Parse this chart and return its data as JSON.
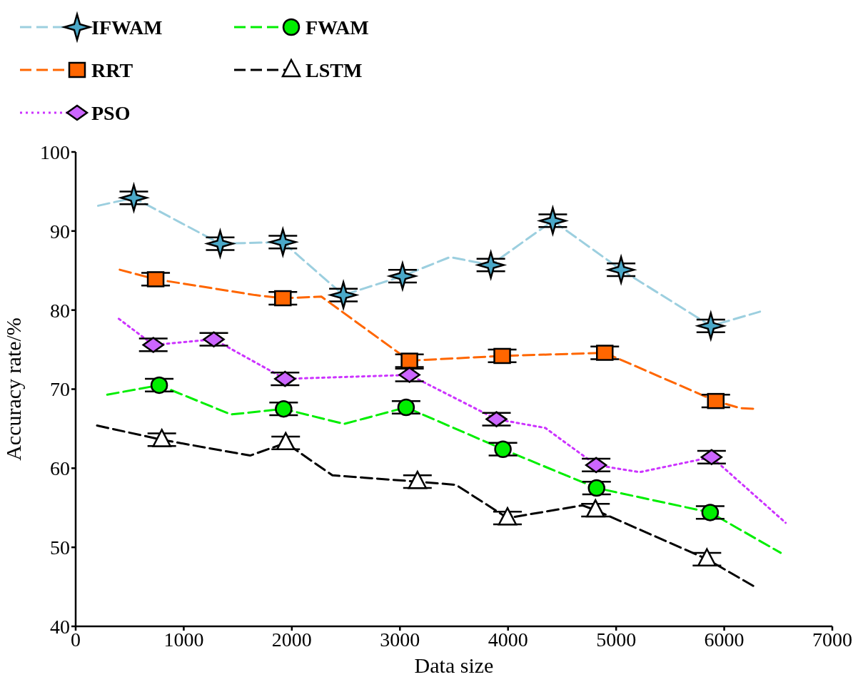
{
  "chart_data": {
    "type": "line",
    "xlabel": "Data size",
    "ylabel": "Accuracy rate/%",
    "xlim": [
      0,
      7000
    ],
    "xticks": [
      0,
      1000,
      2000,
      3000,
      4000,
      5000,
      6000,
      7000
    ],
    "ylim": [
      40,
      100
    ],
    "yticks": [
      40,
      50,
      60,
      70,
      80,
      90,
      100
    ],
    "grid": false,
    "legend": "top left",
    "series": [
      {
        "name": "IFWAM",
        "type": "line",
        "color": "#9ccfdf",
        "line_style": "dashed",
        "marker": "none",
        "x": [
          208,
          538,
          1337,
          1917,
          2477,
          3024,
          3462,
          3841,
          4414,
          5046,
          5876,
          6331
        ],
        "values": [
          93.2,
          94.2,
          88.4,
          88.6,
          81.9,
          84.3,
          86.7,
          85.7,
          91.3,
          85.1,
          78.0,
          79.8
        ]
      },
      {
        "type": "scatter",
        "color": "#4aa8c8",
        "marker": "star",
        "x": [
          538,
          1337,
          1917,
          2477,
          3024,
          3841,
          4414,
          5046,
          5876
        ],
        "values": [
          94.2,
          88.4,
          88.6,
          81.9,
          84.3,
          85.7,
          91.3,
          85.1,
          78.0
        ],
        "errors": [
          0.8,
          0.8,
          0.8,
          0.8,
          0.8,
          0.8,
          0.8,
          0.8,
          0.8
        ]
      },
      {
        "name": "RRT",
        "type": "line",
        "color": "#ff6600",
        "line_style": "dashed",
        "marker": "none",
        "x": [
          408,
          740,
          1660,
          1917,
          2273,
          3088,
          3946,
          4895,
          5922,
          6146,
          6291
        ],
        "values": [
          85.1,
          83.9,
          81.9,
          81.5,
          81.7,
          73.6,
          74.2,
          74.6,
          68.5,
          67.6,
          67.5
        ]
      },
      {
        "type": "scatter",
        "color": "#ff6600",
        "marker": "square",
        "x": [
          740,
          1917,
          3088,
          3946,
          4895,
          5922
        ],
        "values": [
          83.9,
          81.5,
          73.6,
          74.2,
          74.6,
          68.5
        ],
        "errors": [
          0.8,
          0.8,
          0.8,
          0.8,
          0.8,
          0.8
        ]
      },
      {
        "name": "PSO",
        "type": "line",
        "color": "#cc33ff",
        "line_style": "dotted",
        "marker": "none",
        "x": [
          399,
          718,
          1278,
          1937,
          3088,
          3893,
          4344,
          4815,
          5217,
          5883,
          6568
        ],
        "values": [
          78.9,
          75.6,
          76.3,
          71.3,
          71.8,
          66.2,
          65.1,
          60.4,
          59.5,
          61.4,
          53.1
        ]
      },
      {
        "type": "scatter",
        "color": "#cc66ff",
        "marker": "diamond",
        "x": [
          718,
          1278,
          1937,
          3088,
          3893,
          4815,
          5883
        ],
        "values": [
          75.6,
          76.3,
          71.3,
          71.8,
          66.2,
          60.4,
          61.4
        ],
        "errors": [
          0.8,
          0.8,
          0.8,
          0.8,
          0.8,
          0.8,
          0.8
        ]
      },
      {
        "name": "FWAM",
        "type": "line",
        "color": "#00ee00",
        "line_style": "dashed",
        "marker": "none",
        "x": [
          292,
          773,
          1436,
          1924,
          2484,
          3057,
          3953,
          4819,
          5870,
          6522
        ],
        "values": [
          69.3,
          70.5,
          66.8,
          67.5,
          65.6,
          67.7,
          62.4,
          57.5,
          54.4,
          49.3
        ]
      },
      {
        "type": "scatter",
        "color": "#00ee00",
        "marker": "circle",
        "x": [
          773,
          1924,
          3057,
          3953,
          4819,
          5870
        ],
        "values": [
          70.5,
          67.5,
          67.7,
          62.4,
          57.5,
          54.4
        ],
        "errors": [
          0.8,
          0.8,
          0.8,
          0.8,
          0.8,
          0.8
        ]
      },
      {
        "name": "LSTM",
        "type": "line",
        "color": "#000000",
        "line_style": "dashed",
        "marker": "none",
        "x": [
          198,
          797,
          1614,
          1943,
          2375,
          3162,
          3518,
          3995,
          4687,
          4809,
          5840,
          6308
        ],
        "values": [
          65.4,
          63.6,
          61.6,
          63.2,
          59.1,
          58.3,
          57.9,
          53.7,
          55.3,
          54.7,
          48.5,
          44.8
        ]
      },
      {
        "type": "scatter",
        "color": "#ffffff",
        "marker": "triangle",
        "x": [
          797,
          1943,
          3162,
          3995,
          4809,
          5840
        ],
        "values": [
          63.6,
          63.2,
          58.3,
          53.7,
          54.7,
          48.5
        ],
        "errors": [
          0.8,
          0.8,
          0.8,
          0.8,
          0.8,
          0.8
        ]
      }
    ]
  }
}
